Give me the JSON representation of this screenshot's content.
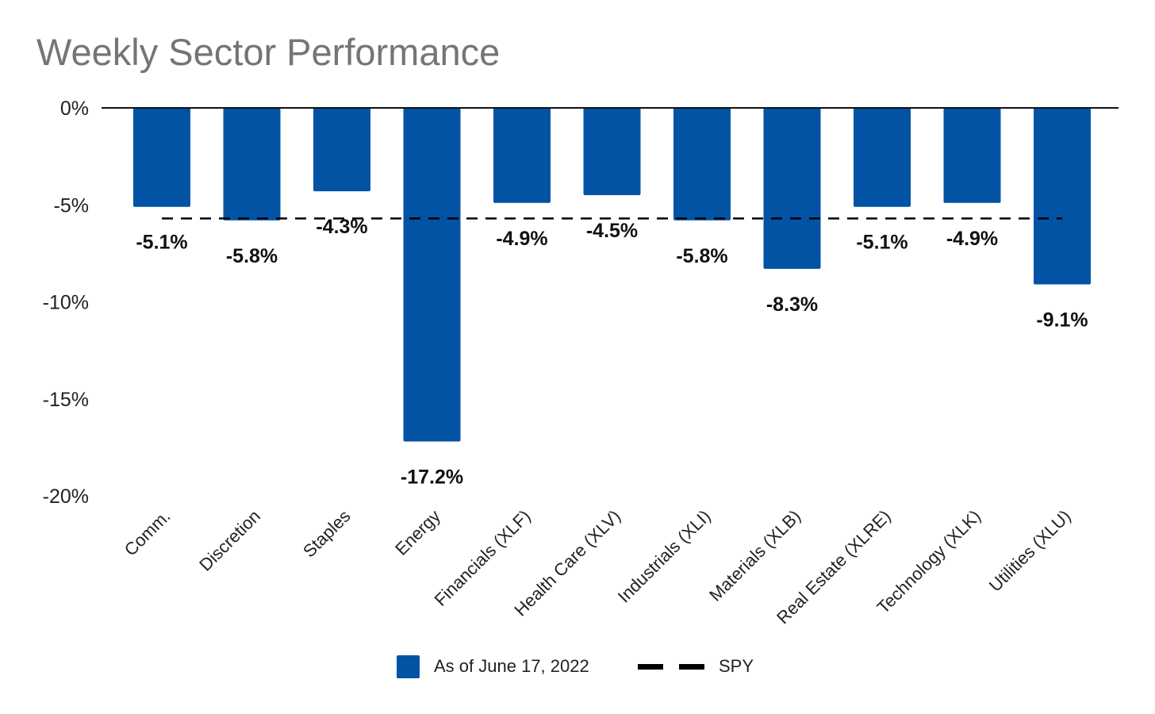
{
  "chart_data": {
    "type": "bar",
    "title": "Weekly Sector Performance",
    "categories": [
      "Comm.",
      "Discretion",
      "Staples",
      "Energy",
      "Financials (XLF)",
      "Health Care (XLV)",
      "Industrials (XLI)",
      "Materials (XLB)",
      "Real Estate (XLRE)",
      "Technology (XLK)",
      "Utilities (XLU)"
    ],
    "series": [
      {
        "name": "As of June 17, 2022",
        "values": [
          -5.1,
          -5.8,
          -4.3,
          -17.2,
          -4.9,
          -4.5,
          -5.8,
          -8.3,
          -5.1,
          -4.9,
          -9.1
        ],
        "data_labels": [
          "-5.1%",
          "-5.8%",
          "-4.3%",
          "-17.2%",
          "-4.9%",
          "-4.5%",
          "-5.8%",
          "-8.3%",
          "-5.1%",
          "-4.9%",
          "-9.1%"
        ],
        "color": "#0253A4"
      },
      {
        "name": "SPY",
        "type": "line",
        "style": "dashed",
        "value": -5.7,
        "color": "#000000"
      }
    ],
    "y_ticks": [
      0,
      -5,
      -10,
      -15,
      -20
    ],
    "y_tick_labels": [
      "0%",
      "-5%",
      "-10%",
      "-15%",
      "-20%"
    ],
    "ylim": [
      -20,
      0
    ],
    "xlabel": "",
    "ylabel": "",
    "grid": false,
    "legend_position": "bottom"
  }
}
